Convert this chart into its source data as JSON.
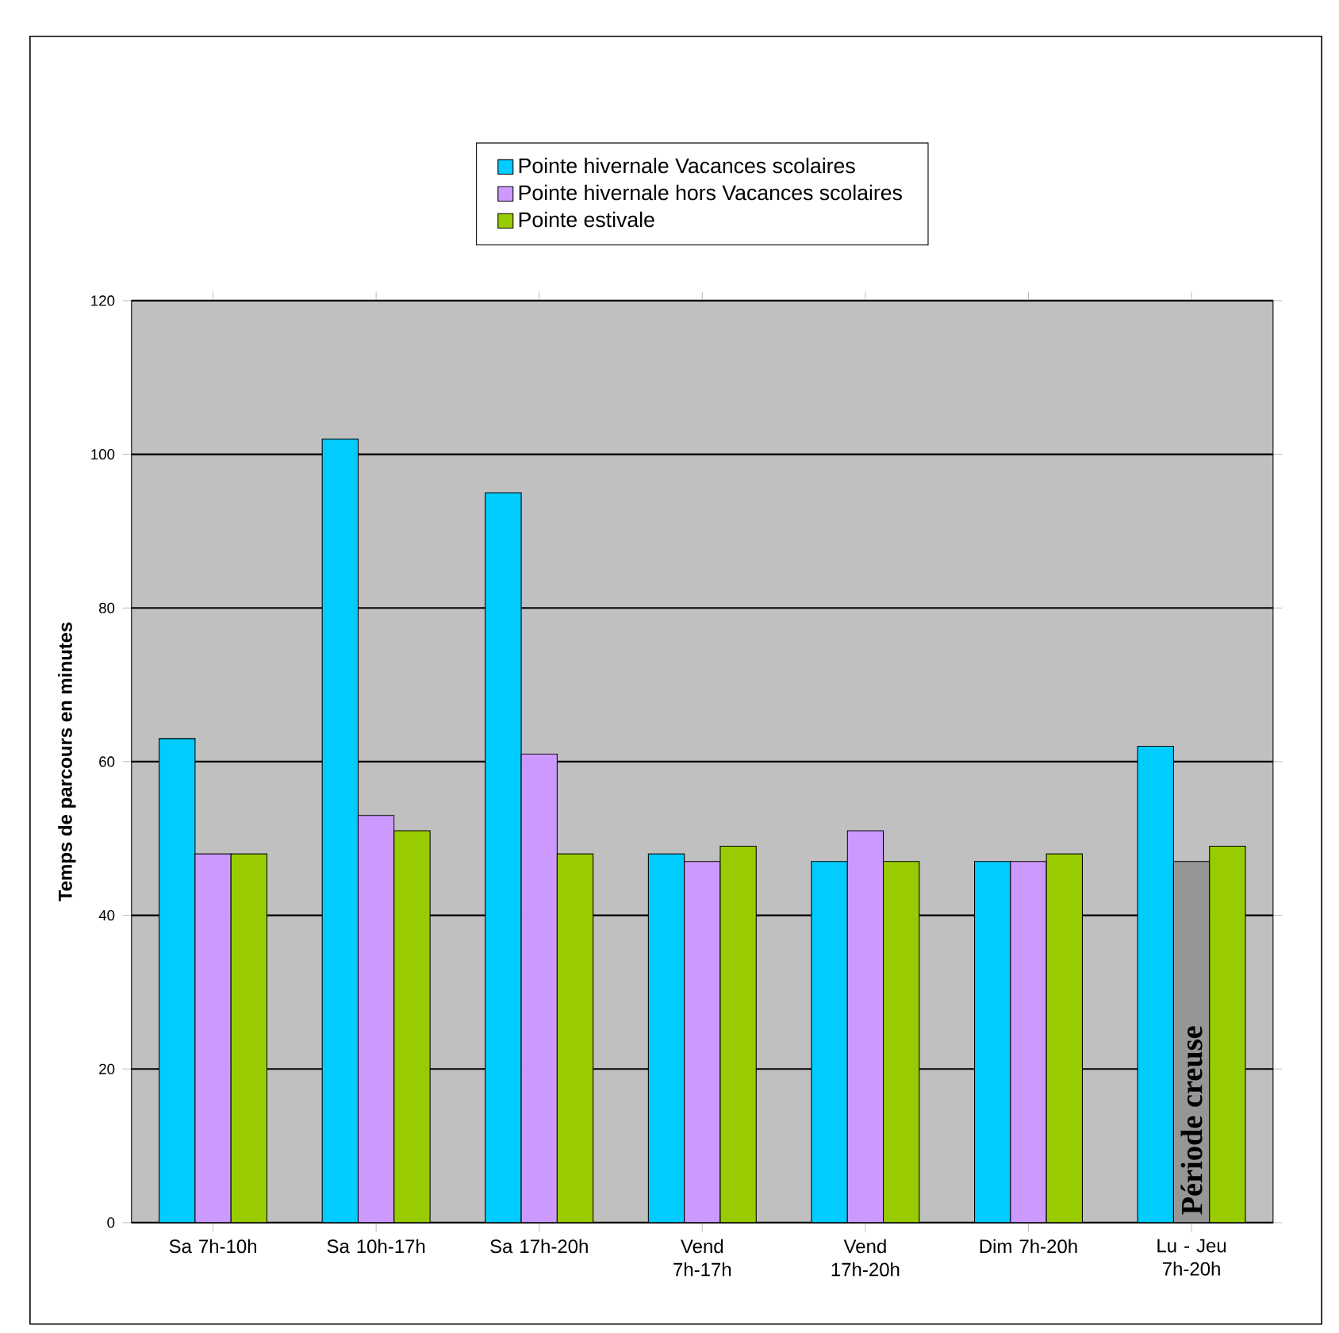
{
  "chart_data": {
    "type": "bar",
    "ylabel": "Temps de parcours en minutes",
    "categories": [
      "Sa 7h-10h",
      "Sa 10h-17h",
      "Sa 17h-20h",
      "Vend 7h-17h",
      "Vend 17h-20h",
      "Dim 7h-20h",
      "Lu - Jeu 7h-20h"
    ],
    "series": [
      {
        "name": "Pointe hivernale Vacances scolaires",
        "color": "#00ccff",
        "values": [
          63,
          102,
          95,
          48,
          47,
          47,
          62
        ]
      },
      {
        "name": "Pointe hivernale hors Vacances scolaires",
        "color": "#cc99ff",
        "colors": [
          "#cc99ff",
          "#cc99ff",
          "#cc99ff",
          "#cc99ff",
          "#cc99ff",
          "#cc99ff",
          "#969696"
        ],
        "values": [
          48,
          53,
          61,
          47,
          51,
          47,
          47
        ]
      },
      {
        "name": "Pointe estivale",
        "color": "#99cc00",
        "values": [
          48,
          51,
          48,
          49,
          47,
          48,
          49
        ]
      }
    ],
    "annotations": [
      "Période creuse"
    ],
    "ylim": [
      0,
      120
    ],
    "yticks": [
      0,
      20,
      40,
      60,
      80,
      100,
      120
    ],
    "grid": "y",
    "legend": "top"
  }
}
